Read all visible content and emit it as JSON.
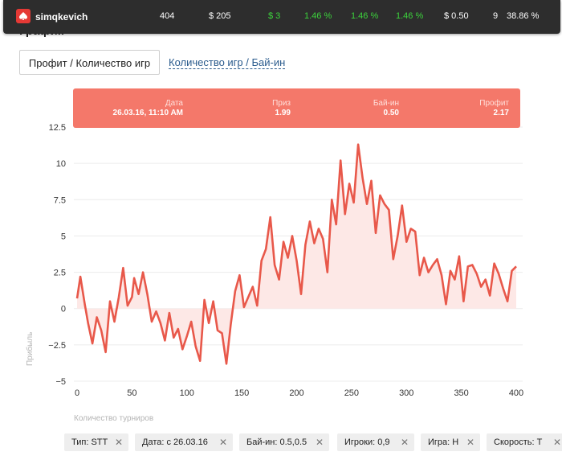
{
  "page": {
    "heading": "График"
  },
  "header": {
    "username": "simqkevich",
    "stats": [
      "404",
      "$ 205",
      "$ 3",
      "1.46 %",
      "1.46 %",
      "1.46 %",
      "$ 0.50",
      "9",
      "38.86 %"
    ],
    "colors": {
      "bar": "#2d2d2d",
      "positive": "#3cd33c",
      "logo": "#e53935"
    }
  },
  "tabs": {
    "active": "Профит / Количество игр",
    "link": "Количество игр / Бай-ин"
  },
  "tooltip": {
    "date_label": "Дата",
    "date_value": "26.03.16, 11:10 AM",
    "prize_label": "Приз",
    "prize_value": "1.99",
    "buyin_label": "Бай-ин",
    "buyin_value": "0.50",
    "profit_label": "Профит",
    "profit_value": "2.17"
  },
  "chart_data": {
    "type": "area",
    "title": "",
    "xlabel": "Количество турниров",
    "ylabel": "Прибыль",
    "xlim": [
      0,
      400
    ],
    "ylim": [
      -5,
      12.5
    ],
    "x_ticks": [
      0,
      50,
      100,
      150,
      200,
      250,
      300,
      350,
      400
    ],
    "y_ticks": [
      -5,
      -2.5,
      0,
      2.5,
      5,
      7.5,
      10,
      12.5
    ],
    "x_tick_labels": [
      "0",
      "50",
      "100",
      "150",
      "200",
      "250",
      "300",
      "350",
      "400"
    ],
    "y_tick_labels": [
      "−5",
      "−2.5",
      "0",
      "2.5",
      "5",
      "7.5",
      "10",
      "12.5"
    ],
    "grid": "horizontal",
    "line_color": "#e8584a",
    "fill_color": "#fde8e6",
    "series": [
      {
        "x": [
          0,
          3,
          7,
          10,
          14,
          18,
          22,
          26,
          30,
          34,
          38,
          42,
          46,
          50,
          52,
          56,
          60,
          64,
          68,
          72,
          76,
          80,
          84,
          88,
          92,
          96,
          100,
          104,
          108,
          112,
          116,
          120,
          124,
          128,
          132,
          136,
          140,
          144,
          148,
          152,
          156,
          160,
          164,
          168,
          172,
          176,
          180,
          184,
          188,
          192,
          196,
          200,
          204,
          208,
          212,
          216,
          220,
          224,
          228,
          232,
          236,
          240,
          244,
          248,
          252,
          256,
          260,
          264,
          268,
          272,
          276,
          280,
          284,
          288,
          292,
          296,
          300,
          304,
          308,
          312,
          316,
          320,
          324,
          328,
          332,
          336,
          340,
          344,
          348,
          352,
          356,
          360,
          364,
          368,
          372,
          376,
          380,
          384,
          388,
          392,
          396,
          400
        ],
        "y": [
          0.7,
          2.2,
          0.3,
          -1.0,
          -2.4,
          -0.6,
          -1.5,
          -3.0,
          0.5,
          -0.9,
          0.8,
          2.8,
          0.2,
          0.8,
          2.1,
          1.0,
          2.5,
          1.0,
          -0.9,
          -0.2,
          -1.0,
          -2.2,
          -0.3,
          -2.0,
          -1.4,
          -2.8,
          -1.9,
          -0.9,
          -2.6,
          -3.6,
          0.6,
          -1.0,
          0.5,
          -1.5,
          -1.7,
          -3.8,
          -1.1,
          1.2,
          2.3,
          0.1,
          0.8,
          1.5,
          0.2,
          3.3,
          4.1,
          6.3,
          3.0,
          2.0,
          4.6,
          3.5,
          5.0,
          3.3,
          1.0,
          4.4,
          6.0,
          4.5,
          5.5,
          4.8,
          2.5,
          7.5,
          5.8,
          10.2,
          6.5,
          8.6,
          7.3,
          11.3,
          9.0,
          7.2,
          8.8,
          5.2,
          7.8,
          7.2,
          6.8,
          3.4,
          5.0,
          7.1,
          4.6,
          5.5,
          5.3,
          2.3,
          3.5,
          2.5,
          3.0,
          3.4,
          2.3,
          0.3,
          2.6,
          2.0,
          3.6,
          0.5,
          2.9,
          3.0,
          2.4,
          1.5,
          2.0,
          0.9,
          3.1,
          2.4,
          1.4,
          0.5,
          2.6,
          2.9
        ]
      }
    ]
  },
  "filters": [
    {
      "label": "Тип: STT",
      "remove": "✕"
    },
    {
      "label": "Дата: с 26.03.16",
      "remove": "✕"
    },
    {
      "label": "Бай-ин: 0.5,0.5",
      "remove": "✕"
    },
    {
      "label": "Игроки: 0,9",
      "remove": "✕"
    },
    {
      "label": "Игра: H",
      "remove": "✕"
    },
    {
      "label": "Скорость: T",
      "remove": "✕"
    }
  ]
}
